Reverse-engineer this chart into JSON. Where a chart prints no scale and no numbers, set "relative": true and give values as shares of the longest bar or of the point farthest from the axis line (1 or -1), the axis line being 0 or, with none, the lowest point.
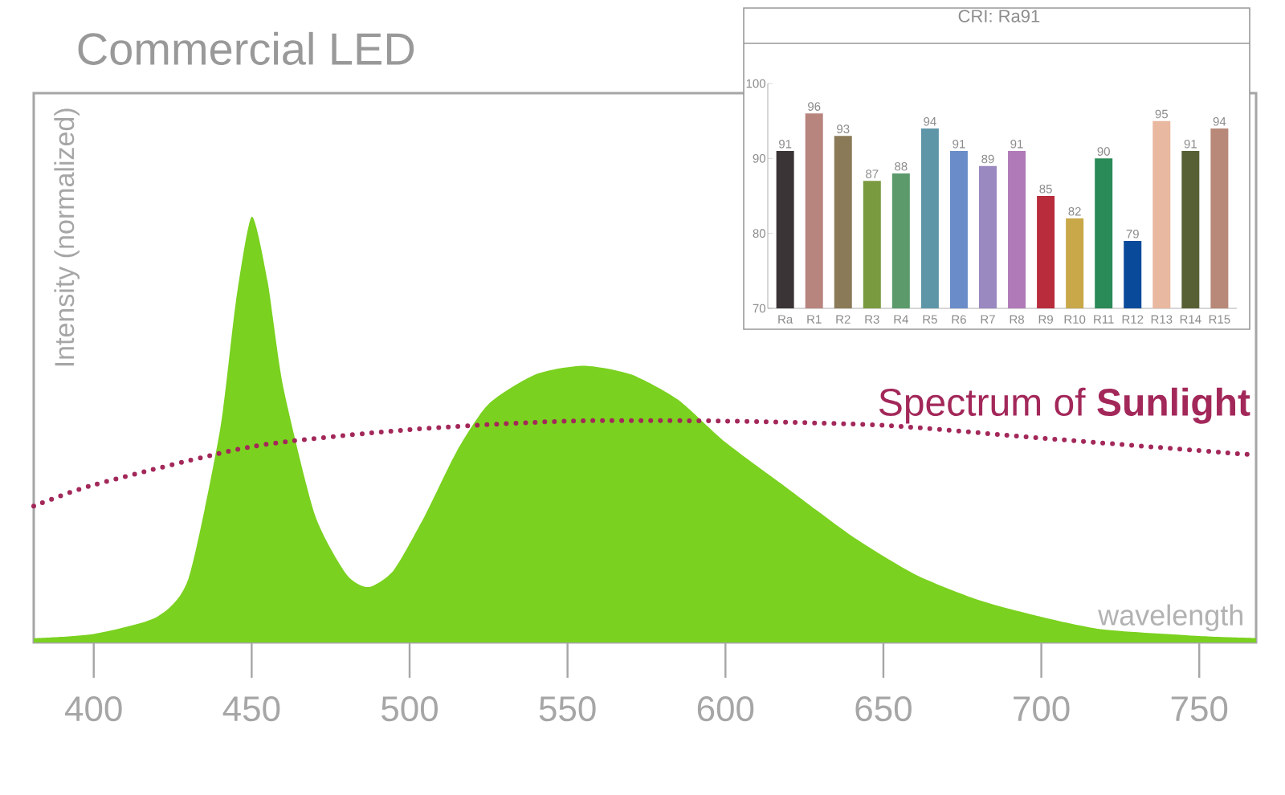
{
  "chart_data": [
    {
      "type": "area",
      "title": "Commercial LED",
      "xlabel": "wavelength",
      "ylabel": "Intensity (normalized)",
      "relative": true,
      "tick_labels": "x",
      "xlim": [
        381,
        768
      ],
      "xticks": [
        400,
        450,
        500,
        550,
        600,
        650,
        700,
        750
      ],
      "series": [
        {
          "color": "#7ad11f",
          "x": [
            381,
            400,
            420,
            430,
            440,
            445,
            450,
            455,
            460,
            470,
            480,
            487,
            495,
            505,
            515,
            525,
            540,
            555,
            570,
            585,
            600,
            620,
            640,
            660,
            680,
            700,
            720,
            750,
            768
          ],
          "values": [
            0.01,
            0.02,
            0.06,
            0.15,
            0.5,
            0.8,
            1.0,
            0.85,
            0.6,
            0.3,
            0.16,
            0.13,
            0.17,
            0.3,
            0.45,
            0.56,
            0.63,
            0.65,
            0.63,
            0.57,
            0.47,
            0.36,
            0.25,
            0.16,
            0.1,
            0.06,
            0.03,
            0.015,
            0.01
          ]
        },
        {
          "type": "line",
          "name": "Spectrum of **Sunlight**",
          "color": "#a3285a",
          "line_style": "dotted",
          "x": [
            381,
            400,
            450,
            500,
            550,
            600,
            650,
            700,
            768
          ],
          "values": [
            0.32,
            0.37,
            0.46,
            0.5,
            0.52,
            0.52,
            0.51,
            0.48,
            0.44
          ]
        }
      ]
    },
    {
      "type": "bar",
      "title": "CRI: Ra91",
      "categories": [
        "Ra",
        "R1",
        "R2",
        "R3",
        "R4",
        "R5",
        "R6",
        "R7",
        "R8",
        "R9",
        "R10",
        "R11",
        "R12",
        "R13",
        "R14",
        "R15"
      ],
      "values": [
        91,
        96,
        93,
        87,
        88,
        94,
        91,
        89,
        91,
        85,
        82,
        90,
        79,
        95,
        91,
        94
      ],
      "colors": [
        "#3a3436",
        "#b8847e",
        "#8a7a58",
        "#7a9a40",
        "#5c9a6c",
        "#5e96a8",
        "#6a8cc8",
        "#9a88c0",
        "#b07ab8",
        "#b82c3c",
        "#c8a848",
        "#2a8a58",
        "#0a4a9a",
        "#e8b8a0",
        "#566034",
        "#b88878"
      ],
      "ylim": [
        70,
        100
      ],
      "yticks": [
        70,
        80,
        90,
        100
      ],
      "data_labels": true
    }
  ]
}
